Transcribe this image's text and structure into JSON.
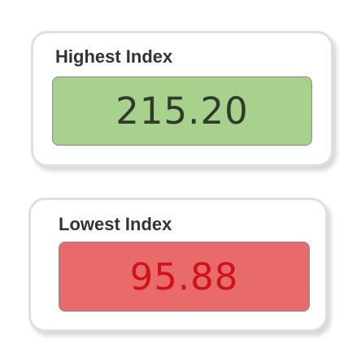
{
  "highest": {
    "title": "Highest Index",
    "value": "215.20",
    "box_color": "#a9d18e",
    "text_color": "#2f3b2a"
  },
  "lowest": {
    "title": "Lowest Index",
    "value": "95.88",
    "box_color": "#e86a6a",
    "text_color": "#d0121b"
  }
}
